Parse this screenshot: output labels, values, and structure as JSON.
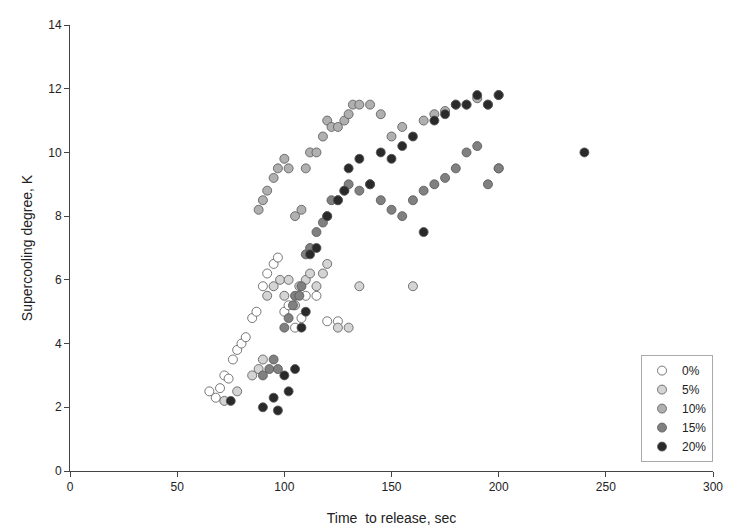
{
  "chart_data": {
    "type": "scatter",
    "xlabel": "Time  to release, sec",
    "ylabel": "Supercooling degree, K",
    "xlim": [
      0,
      300
    ],
    "ylim": [
      0,
      14
    ],
    "xticks": [
      0,
      50,
      100,
      150,
      200,
      250,
      300
    ],
    "yticks": [
      0,
      2,
      4,
      6,
      8,
      10,
      12,
      14
    ],
    "grid": false,
    "legend": "lower right",
    "marker": "circle",
    "series": [
      {
        "name": "0%",
        "color": "white",
        "x": [
          65,
          68,
          70,
          72,
          74,
          76,
          78,
          80,
          82,
          85,
          87,
          90,
          92,
          95,
          97,
          100,
          102,
          105,
          108,
          110,
          115,
          120,
          125
        ],
        "values": [
          2.5,
          2.3,
          2.6,
          3.0,
          2.9,
          3.5,
          3.8,
          4.0,
          4.2,
          4.8,
          5.0,
          5.8,
          6.2,
          6.5,
          6.7,
          5.0,
          5.2,
          4.5,
          4.8,
          5.5,
          5.5,
          4.7,
          4.7
        ]
      },
      {
        "name": "5%",
        "color": "#d4d4d4",
        "x": [
          72,
          78,
          85,
          88,
          90,
          92,
          95,
          98,
          100,
          102,
          105,
          107,
          110,
          112,
          115,
          118,
          120,
          125,
          130,
          135,
          160,
          200
        ],
        "values": [
          2.2,
          2.5,
          3.0,
          3.2,
          3.5,
          5.5,
          5.8,
          6.0,
          5.5,
          6.0,
          5.2,
          5.8,
          6.0,
          6.2,
          5.8,
          6.2,
          6.5,
          4.5,
          4.5,
          5.8,
          5.8,
          9.5
        ]
      },
      {
        "name": "10%",
        "color": "#b0b0b0",
        "x": [
          88,
          90,
          92,
          95,
          97,
          100,
          102,
          105,
          108,
          110,
          112,
          115,
          118,
          120,
          122,
          125,
          128,
          130,
          132,
          135,
          140,
          145,
          150,
          155,
          165,
          170,
          175,
          180,
          185,
          190,
          195,
          200
        ],
        "values": [
          8.2,
          8.5,
          8.8,
          9.2,
          9.5,
          9.8,
          9.5,
          8.0,
          8.2,
          9.5,
          10.0,
          10.0,
          10.5,
          11.0,
          10.8,
          10.8,
          11.0,
          11.2,
          11.5,
          11.5,
          11.5,
          11.2,
          10.5,
          10.8,
          11.0,
          11.2,
          11.3,
          11.5,
          11.5,
          11.7,
          11.5,
          11.8
        ]
      },
      {
        "name": "15%",
        "color": "#808080",
        "x": [
          90,
          93,
          95,
          97,
          100,
          102,
          104,
          105,
          107,
          108,
          110,
          112,
          115,
          118,
          120,
          122,
          125,
          128,
          130,
          135,
          140,
          145,
          150,
          155,
          160,
          165,
          170,
          175,
          180,
          185,
          190,
          195,
          200
        ],
        "values": [
          3.0,
          3.2,
          3.5,
          3.2,
          4.5,
          4.8,
          5.2,
          5.5,
          5.5,
          5.8,
          6.8,
          7.0,
          7.5,
          7.8,
          8.0,
          8.5,
          8.5,
          8.8,
          9.0,
          8.8,
          9.0,
          8.5,
          8.2,
          8.0,
          8.5,
          8.8,
          9.0,
          9.2,
          9.5,
          10.0,
          10.2,
          9.0,
          9.5
        ]
      },
      {
        "name": "20%",
        "color": "#2a2a2a",
        "x": [
          75,
          90,
          95,
          97,
          100,
          102,
          105,
          108,
          110,
          112,
          115,
          120,
          125,
          128,
          130,
          135,
          140,
          145,
          150,
          155,
          160,
          165,
          170,
          175,
          180,
          185,
          190,
          195,
          200,
          240
        ],
        "values": [
          2.2,
          2.0,
          2.3,
          1.9,
          3.0,
          2.5,
          3.2,
          4.5,
          5.0,
          6.8,
          7.0,
          8.0,
          8.5,
          8.8,
          9.5,
          9.8,
          9.0,
          10.0,
          9.8,
          10.2,
          10.5,
          7.5,
          11.0,
          11.2,
          11.5,
          11.5,
          11.8,
          11.5,
          11.8,
          10.0
        ]
      }
    ]
  }
}
